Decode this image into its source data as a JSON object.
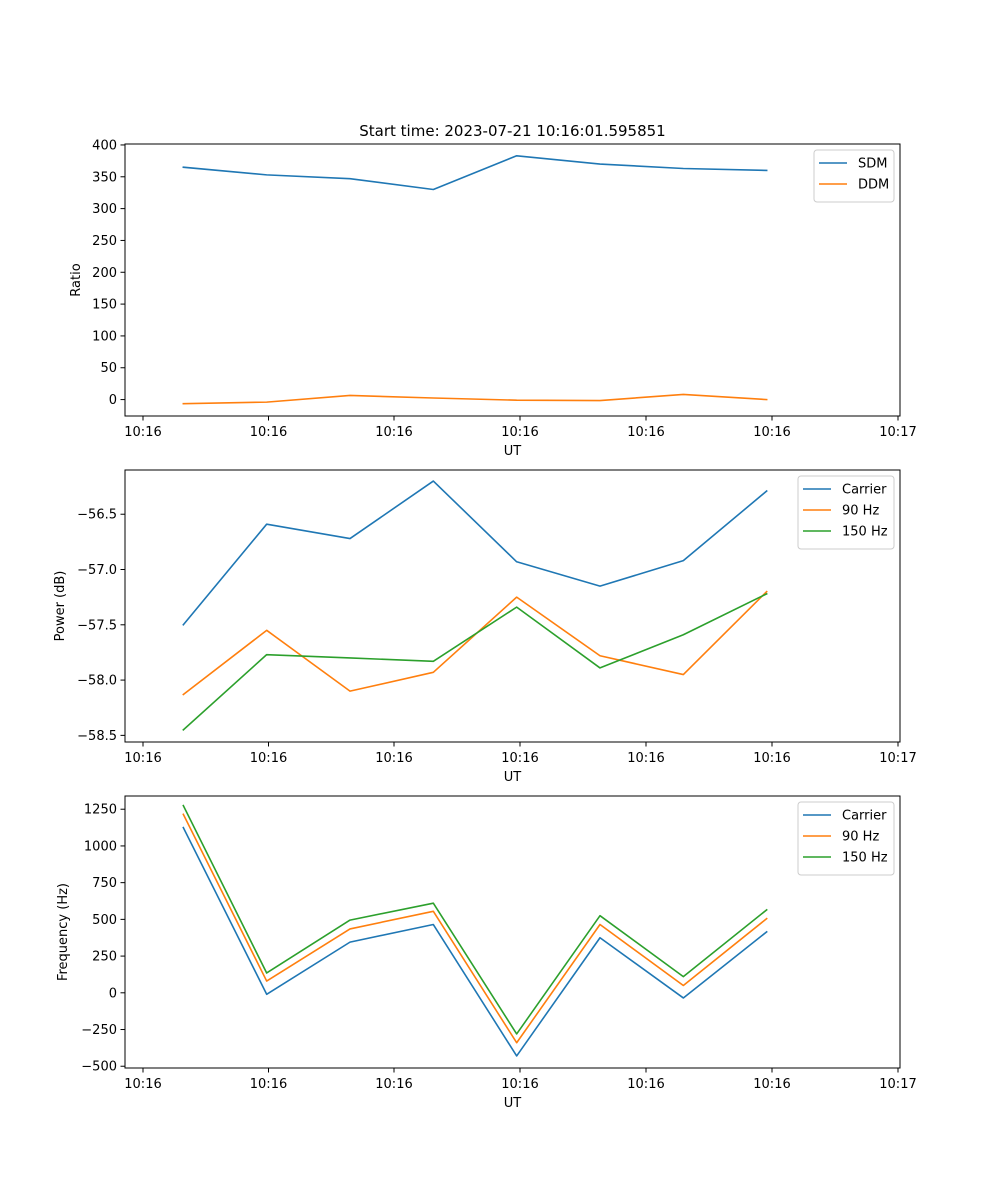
{
  "title": "Start time: 2023-07-21 10:16:01.595851",
  "colors": {
    "blue": "#1f77b4",
    "orange": "#ff7f0e",
    "green": "#2ca02c"
  },
  "chart_data": [
    {
      "type": "line",
      "xlabel": "UT",
      "ylabel": "Ratio",
      "x_tick_labels": [
        "10:16",
        "10:16",
        "10:16",
        "10:16",
        "10:16",
        "10:16",
        "10:16"
      ],
      "x_last_tick_label": "10:17",
      "xlim": [
        0,
        9.3
      ],
      "x": [
        0.7,
        1.7,
        2.7,
        3.7,
        4.7,
        5.7,
        6.7,
        7.7
      ],
      "ylim": [
        -25.8,
        401.5
      ],
      "yticks": [
        0,
        50,
        100,
        150,
        200,
        250,
        300,
        350,
        400
      ],
      "legend_position": "top-right",
      "series": [
        {
          "name": "SDM",
          "color": "#1f77b4",
          "values": [
            365,
            353,
            347,
            330,
            383,
            370,
            363,
            360
          ]
        },
        {
          "name": "DDM",
          "color": "#ff7f0e",
          "values": [
            -6.5,
            -4,
            6.5,
            2.5,
            -1,
            -1.5,
            8,
            0
          ]
        }
      ]
    },
    {
      "type": "line",
      "xlabel": "UT",
      "ylabel": "Power (dB)",
      "x_tick_labels": [
        "10:16",
        "10:16",
        "10:16",
        "10:16",
        "10:16",
        "10:16",
        "10:16"
      ],
      "x_last_tick_label": "10:17",
      "xlim": [
        0,
        9.3
      ],
      "x": [
        0.7,
        1.7,
        2.7,
        3.7,
        4.7,
        5.7,
        6.7,
        7.7
      ],
      "ylim": [
        -58.56,
        -56.1
      ],
      "yticks": [
        -58.5,
        -58.0,
        -57.5,
        -57.0,
        -56.5
      ],
      "ytick_labels": [
        "−58.5",
        "−58.0",
        "−57.5",
        "−57.0",
        "−56.5"
      ],
      "legend_position": "top-right",
      "series": [
        {
          "name": "Carrier",
          "color": "#1f77b4",
          "values": [
            -57.5,
            -56.59,
            -56.72,
            -56.2,
            -56.93,
            -57.15,
            -56.92,
            -56.29
          ]
        },
        {
          "name": "90 Hz",
          "color": "#ff7f0e",
          "values": [
            -58.13,
            -57.55,
            -58.1,
            -57.93,
            -57.25,
            -57.78,
            -57.95,
            -57.2
          ]
        },
        {
          "name": "150 Hz",
          "color": "#2ca02c",
          "values": [
            -58.45,
            -57.77,
            -57.8,
            -57.83,
            -57.34,
            -57.89,
            -57.59,
            -57.22
          ]
        }
      ]
    },
    {
      "type": "line",
      "xlabel": "UT",
      "ylabel": "Frequency (Hz)",
      "x_tick_labels": [
        "10:16",
        "10:16",
        "10:16",
        "10:16",
        "10:16",
        "10:16",
        "10:16"
      ],
      "x_last_tick_label": "10:17",
      "xlim": [
        0,
        9.3
      ],
      "x": [
        0.7,
        1.7,
        2.7,
        3.7,
        4.7,
        5.7,
        6.7,
        7.7
      ],
      "ylim": [
        -512,
        1340
      ],
      "yticks": [
        -500,
        -250,
        0,
        250,
        500,
        750,
        1000,
        1250
      ],
      "ytick_labels": [
        "−500",
        "−250",
        "0",
        "250",
        "500",
        "750",
        "1000",
        "1250"
      ],
      "legend_position": "top-right",
      "series": [
        {
          "name": "Carrier",
          "color": "#1f77b4",
          "values": [
            1125,
            -10,
            345,
            465,
            -430,
            375,
            -35,
            415
          ]
        },
        {
          "name": "90 Hz",
          "color": "#ff7f0e",
          "values": [
            1215,
            80,
            435,
            555,
            -340,
            465,
            50,
            505
          ]
        },
        {
          "name": "150 Hz",
          "color": "#2ca02c",
          "values": [
            1275,
            135,
            495,
            610,
            -280,
            525,
            110,
            565
          ]
        }
      ]
    }
  ]
}
